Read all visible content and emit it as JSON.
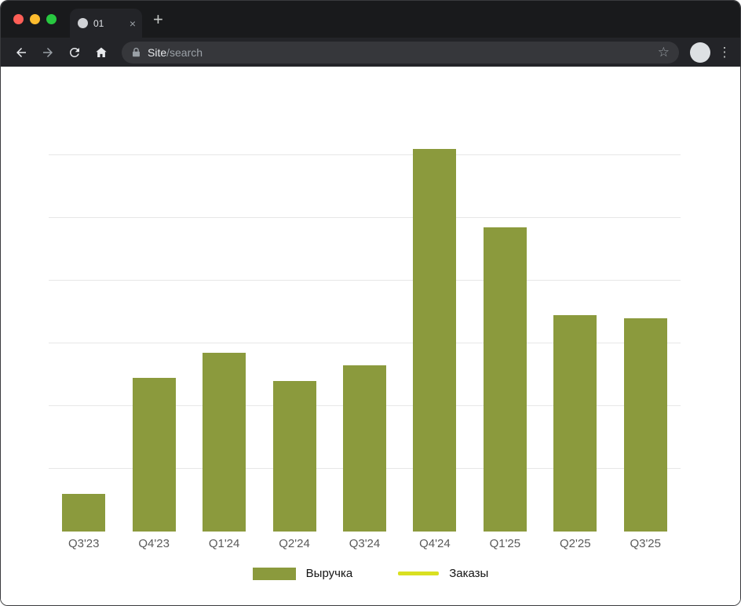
{
  "browser": {
    "window_controls": {
      "close_color": "#ff5f57",
      "minimize_color": "#febc2e",
      "zoom_color": "#28c840"
    },
    "tab": {
      "title": "01",
      "close_glyph": "×"
    },
    "new_tab_glyph": "+",
    "url": {
      "site": "Site",
      "path": "/search"
    },
    "icons": {
      "star_glyph": "☆",
      "menu_glyph": "⋮"
    }
  },
  "chart_data": {
    "type": "bar",
    "title": "",
    "xlabel": "",
    "ylabel": "",
    "categories": [
      "Q3'23",
      "Q4'23",
      "Q1'24",
      "Q2'24",
      "Q3'24",
      "Q4'24",
      "Q1'25",
      "Q2'25",
      "Q3'25"
    ],
    "series": [
      {
        "name": "Выручка",
        "type": "bar",
        "color": "#8b9a3d",
        "values": [
          12,
          49,
          57,
          48,
          53,
          122,
          97,
          69,
          68
        ]
      },
      {
        "name": "Заказы",
        "type": "line",
        "color": "#d9e021",
        "values": []
      }
    ],
    "ylim": [
      0,
      125
    ],
    "gridline_values": [
      20,
      40,
      60,
      80,
      100,
      120
    ],
    "grid": true,
    "legend_position": "bottom",
    "y_tick_labels_visible": false
  }
}
